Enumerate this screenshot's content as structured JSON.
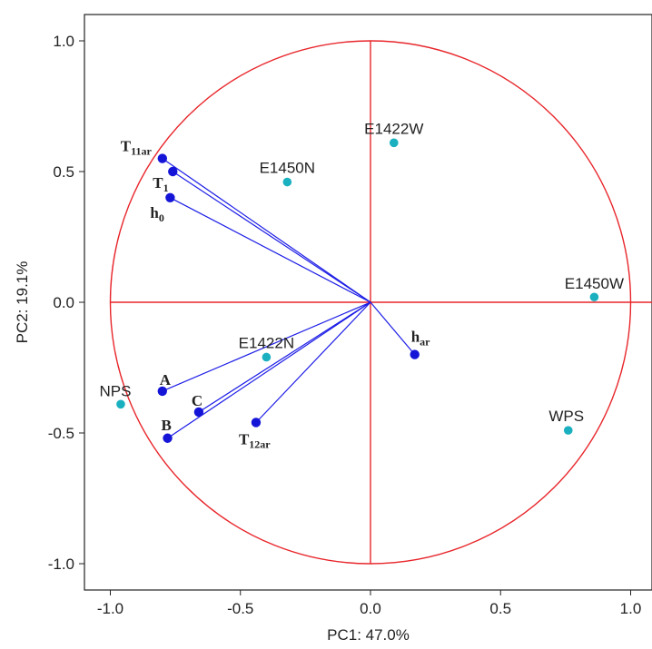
{
  "chart_data": {
    "type": "scatter",
    "subtype": "pca-biplot",
    "title": "",
    "xlabel": "PC1: 47.0%",
    "ylabel": "PC2: 19.1%",
    "xlim": [
      -1.1,
      1.1
    ],
    "ylim": [
      -1.1,
      1.1
    ],
    "xticks": [
      "-1.0",
      "-0.5",
      "0.0",
      "0.5",
      "1.0"
    ],
    "yticks": [
      "1.0",
      "0.5",
      "0.0",
      "-0.5",
      "-1.0"
    ],
    "xtick_values": [
      -1.0,
      -0.5,
      0.0,
      0.5,
      1.0
    ],
    "ytick_values": [
      1.0,
      0.5,
      0.0,
      -0.5,
      -1.0
    ],
    "unit_circle": true,
    "colors": {
      "circle": "#e8262b",
      "vectors": "#1c1ce6",
      "loadings": "#1515d8",
      "scores": "#1ab0c0",
      "frame": "#222222"
    },
    "loadings": [
      {
        "base": "T",
        "sub": "11ar",
        "x": -0.8,
        "y": 0.55
      },
      {
        "base": "T",
        "sub": "1",
        "x": -0.76,
        "y": 0.5
      },
      {
        "base": "h",
        "sub": "0",
        "x": -0.77,
        "y": 0.4
      },
      {
        "base": "A",
        "sub": "",
        "x": -0.8,
        "y": -0.34
      },
      {
        "base": "C",
        "sub": "",
        "x": -0.66,
        "y": -0.42
      },
      {
        "base": "B",
        "sub": "",
        "x": -0.78,
        "y": -0.52
      },
      {
        "base": "T",
        "sub": "12ar",
        "x": -0.44,
        "y": -0.46
      },
      {
        "base": "h",
        "sub": "ar",
        "x": 0.17,
        "y": -0.2
      }
    ],
    "scores": [
      {
        "label": "E1422W",
        "x": 0.09,
        "y": 0.61
      },
      {
        "label": "E1450N",
        "x": -0.32,
        "y": 0.46
      },
      {
        "label": "E1450W",
        "x": 0.86,
        "y": 0.02
      },
      {
        "label": "E1422N",
        "x": -0.4,
        "y": -0.21
      },
      {
        "label": "NPS",
        "x": -0.96,
        "y": -0.39
      },
      {
        "label": "WPS",
        "x": 0.76,
        "y": -0.49
      }
    ]
  }
}
